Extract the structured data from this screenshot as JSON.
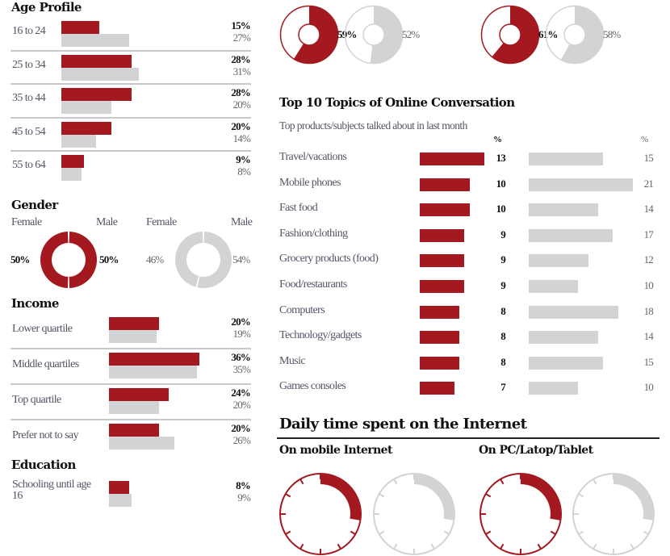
{
  "colors": {
    "accent": "#a3191f",
    "comparison": "#d2d3d5"
  },
  "chart_data": [
    {
      "type": "bar",
      "title": "Age Profile",
      "categories": [
        "16 to 24",
        "25 to 34",
        "35 to 44",
        "45 to 54",
        "55 to 64"
      ],
      "series": [
        {
          "values": [
            15,
            28,
            28,
            20,
            9
          ],
          "labels": [
            "15%",
            "28%",
            "28%",
            "20%",
            "9%"
          ],
          "color": "#a3191f"
        },
        {
          "values": [
            27,
            31,
            20,
            14,
            8
          ],
          "labels": [
            "27%",
            "31%",
            "20%",
            "14%",
            "8%"
          ],
          "color": "#d2d3d5"
        }
      ]
    },
    {
      "type": "pie",
      "title": "Gender",
      "charts": [
        {
          "color": "#a3191f",
          "slices": [
            {
              "name": "Female",
              "value": 50,
              "label": "50%"
            },
            {
              "name": "Male",
              "value": 50,
              "label": "50%"
            }
          ]
        },
        {
          "color": "#d2d3d5",
          "slices": [
            {
              "name": "Female",
              "value": 46,
              "label": "46%"
            },
            {
              "name": "Male",
              "value": 54,
              "label": "54%"
            }
          ]
        }
      ]
    },
    {
      "type": "bar",
      "title": "Income",
      "categories": [
        "Lower quartile",
        "Middle quartiles",
        "Top quartile",
        "Prefer not to say"
      ],
      "series": [
        {
          "values": [
            20,
            36,
            24,
            20
          ],
          "labels": [
            "20%",
            "36%",
            "24%",
            "20%"
          ],
          "color": "#a3191f"
        },
        {
          "values": [
            19,
            35,
            20,
            26
          ],
          "labels": [
            "19%",
            "35%",
            "20%",
            "26%"
          ],
          "color": "#d2d3d5"
        }
      ]
    },
    {
      "type": "bar",
      "title": "Education",
      "categories": [
        "Schooling until age 16"
      ],
      "series": [
        {
          "values": [
            8
          ],
          "labels": [
            "8%"
          ],
          "color": "#a3191f"
        },
        {
          "values": [
            9
          ],
          "labels": [
            "9%"
          ],
          "color": "#d2d3d5"
        }
      ]
    },
    {
      "type": "pie",
      "charts": [
        {
          "value": 59,
          "label": "59%",
          "color": "#a3191f"
        },
        {
          "value": 52,
          "label": "52%",
          "color": "#d2d3d5"
        },
        {
          "value": 61,
          "label": "61%",
          "color": "#a3191f"
        },
        {
          "value": 58,
          "label": "58%",
          "color": "#d2d3d5"
        }
      ]
    },
    {
      "type": "bar",
      "title": "Top 10 Topics of Online Conversation",
      "subtitle": "Top products/subjects talked about in last month",
      "unit_header": "%",
      "categories": [
        "Travel/vacations",
        "Mobile phones",
        "Fast food",
        "Fashion/clothing",
        "Grocery products (food)",
        "Food/restaurants",
        "Computers",
        "Technology/gadgets",
        "Music",
        "Games consoles"
      ],
      "series": [
        {
          "values": [
            13,
            10,
            10,
            9,
            9,
            9,
            8,
            8,
            8,
            7
          ],
          "labels": [
            "13",
            "10",
            "10",
            "9",
            "9",
            "9",
            "8",
            "8",
            "8",
            "7"
          ],
          "color": "#a3191f"
        },
        {
          "values": [
            15,
            21,
            14,
            17,
            12,
            10,
            18,
            14,
            15,
            10
          ],
          "labels": [
            "15",
            "21",
            "14",
            "17",
            "12",
            "10",
            "18",
            "14",
            "15",
            "10"
          ],
          "color": "#d2d3d5"
        }
      ]
    }
  ],
  "daily": {
    "title": "Daily time spent on the Internet",
    "mobile": "On mobile Internet",
    "pc": "On PC/Latop/Tablet"
  }
}
